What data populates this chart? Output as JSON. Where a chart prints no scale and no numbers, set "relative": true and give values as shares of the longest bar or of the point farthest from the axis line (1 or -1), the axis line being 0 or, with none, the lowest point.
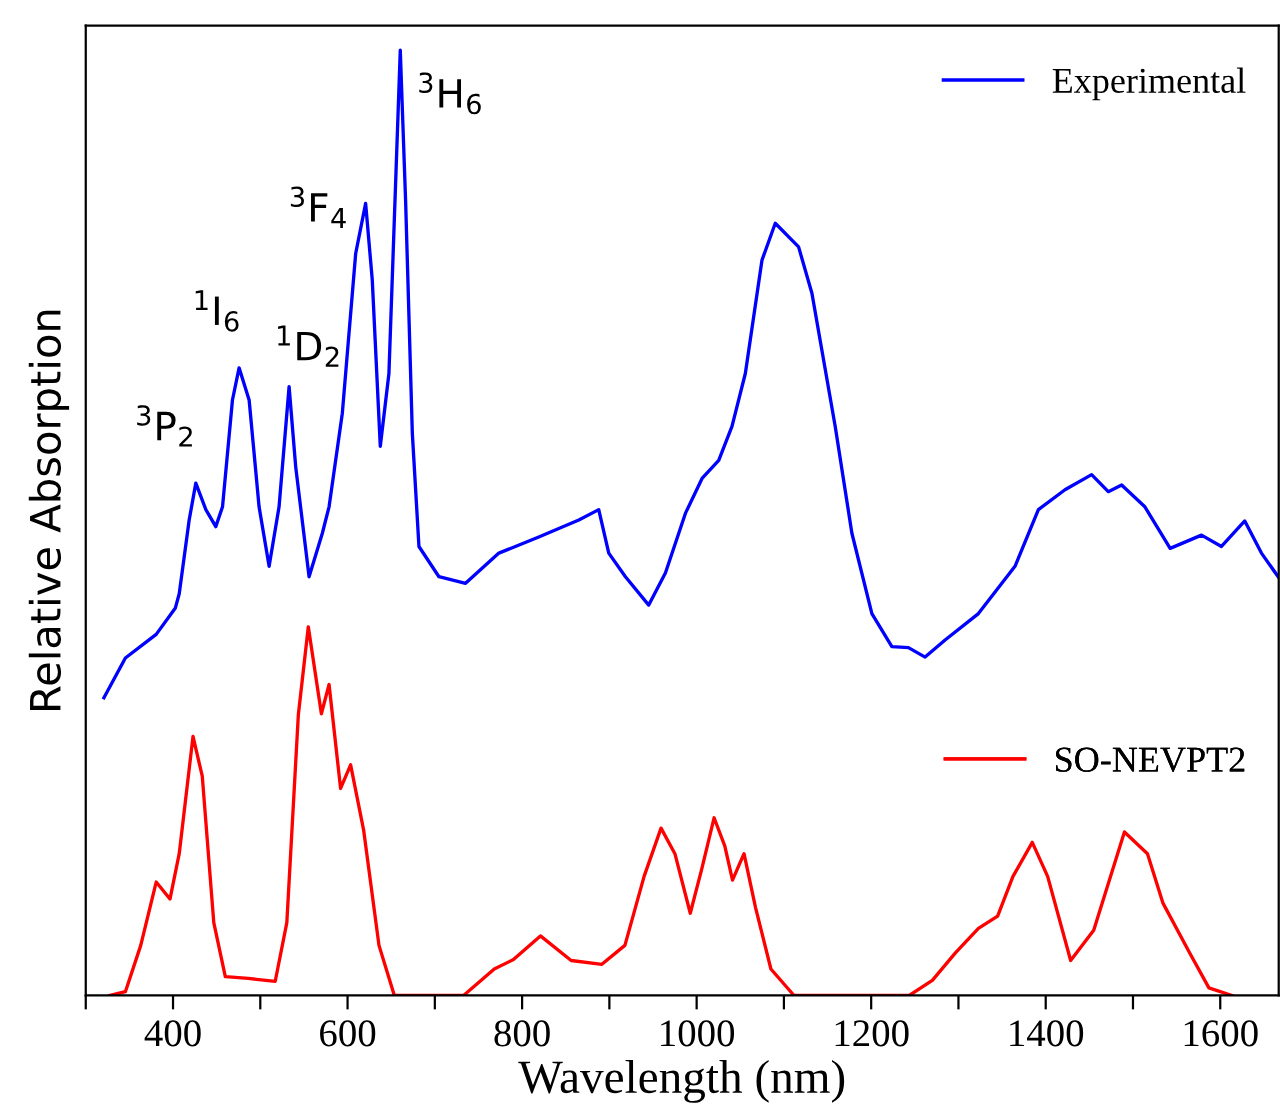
{
  "chart_data": {
    "type": "line",
    "relative": true,
    "xlabel": "Wavelength (nm)",
    "ylabel": "Relative Absorption",
    "xlim": [
      300,
      1667
    ],
    "xticks": [
      {
        "value": 300,
        "label": null
      },
      400,
      {
        "value": 500,
        "label": null
      },
      600,
      {
        "value": 700,
        "label": null
      },
      800,
      {
        "value": 900,
        "label": null
      },
      1000,
      {
        "value": 1100,
        "label": null
      },
      1200,
      {
        "value": 1300,
        "label": null
      },
      1400,
      {
        "value": 1500,
        "label": null
      },
      1600
    ],
    "legend": "right",
    "grid": false,
    "line_style": "solid",
    "marker": "none",
    "series": [
      {
        "name": "Experimental",
        "color": "#0000ff",
        "x": [
          320.8,
          345.4,
          380.7,
          402.7,
          407.1,
          418.5,
          426.1,
          437.6,
          449.0,
          456.7,
          468.1,
          475.7,
          487.2,
          498.6,
          510.1,
          521.5,
          533.0,
          540.6,
          555.9,
          571.1,
          578.8,
          594.0,
          609.3,
          620.7,
          628.3,
          637.5,
          647.4,
          660.4,
          666.5,
          674.2,
          681.8,
          704.7,
          735.2,
          773.4,
          819.1,
          865.0,
          887.8,
          899.3,
          918.4,
          945.1,
          964.2,
          987.1,
          1006.2,
          1025.3,
          1040.5,
          1055.8,
          1074.9,
          1090.1,
          1116.8,
          1132.1,
          1158.8,
          1177.9,
          1200.8,
          1223.7,
          1242.7,
          1261.8,
          1284.7,
          1322.9,
          1364.8,
          1391.6,
          1422.1,
          1452.6,
          1471.7,
          1487.0,
          1513.6,
          1542.6,
          1578.5,
          1601.4,
          1628.1,
          1647.2,
          1666.3
        ],
        "values": [
          0.315,
          0.357,
          0.382,
          0.41,
          0.425,
          0.503,
          0.542,
          0.514,
          0.496,
          0.517,
          0.63,
          0.664,
          0.63,
          0.517,
          0.454,
          0.517,
          0.644,
          0.559,
          0.443,
          0.489,
          0.517,
          0.616,
          0.785,
          0.838,
          0.757,
          0.581,
          0.658,
          1.0,
          0.841,
          0.595,
          0.475,
          0.443,
          0.436,
          0.468,
          0.485,
          0.503,
          0.514,
          0.468,
          0.443,
          0.413,
          0.447,
          0.51,
          0.547,
          0.566,
          0.602,
          0.658,
          0.778,
          0.817,
          0.792,
          0.743,
          0.602,
          0.489,
          0.404,
          0.369,
          0.368,
          0.358,
          0.376,
          0.404,
          0.454,
          0.514,
          0.535,
          0.551,
          0.533,
          0.54,
          0.517,
          0.473,
          0.487,
          0.475,
          0.502,
          0.468,
          0.443
        ]
      },
      {
        "name": "SO-NEVPT2",
        "color": "#ff0000",
        "x": [
          327.8,
          345.4,
          363.0,
          380.7,
          396.5,
          407.1,
          422.9,
          433.5,
          446.7,
          459.9,
          486.3,
          517.1,
          530.4,
          543.6,
          555.0,
          570.0,
          578.8,
          592.0,
          603.5,
          618.4,
          636.0,
          653.6,
          732.9,
          768.1,
          790.1,
          821.0,
          856.2,
          891.4,
          917.8,
          939.8,
          959.2,
          975.1,
          992.7,
          1005.9,
          1020.0,
          1032.3,
          1041.1,
          1054.3,
          1067.5,
          1085.1,
          1111.6,
          1243.6,
          1270.1,
          1296.5,
          1322.9,
          1344.9,
          1362.5,
          1384.6,
          1402.2,
          1428.6,
          1455.0,
          1490.2,
          1516.6,
          1534.2,
          1565.0,
          1587.0,
          1613.5
        ],
        "values": [
          0,
          0.004,
          0.053,
          0.12,
          0.102,
          0.15,
          0.274,
          0.232,
          0.077,
          0.02,
          0.018,
          0.015,
          0.077,
          0.297,
          0.39,
          0.298,
          0.329,
          0.219,
          0.244,
          0.175,
          0.053,
          0,
          0,
          0.028,
          0.038,
          0.063,
          0.037,
          0.033,
          0.053,
          0.126,
          0.177,
          0.15,
          0.087,
          0.134,
          0.188,
          0.158,
          0.122,
          0.15,
          0.093,
          0.028,
          0,
          0,
          0.016,
          0.045,
          0.071,
          0.084,
          0.126,
          0.162,
          0.126,
          0.037,
          0.069,
          0.173,
          0.15,
          0.098,
          0.045,
          0.008,
          0
        ]
      }
    ],
    "annotations": [
      {
        "text": "$^{3}$P$_{2}$",
        "x": 426.1,
        "y": 0.542
      },
      {
        "text": "$^{1}$I$_{6}$",
        "x": 475.7,
        "y": 0.664
      },
      {
        "text": "$^{1}$D$_{2}$",
        "x": 533.0,
        "y": 0.644
      },
      {
        "text": "$^{3}$F$_{4}$",
        "x": 620.7,
        "y": 0.838
      },
      {
        "text": "$^{3}$H$_{6}$",
        "x": 660.4,
        "y": 1.0
      }
    ]
  }
}
